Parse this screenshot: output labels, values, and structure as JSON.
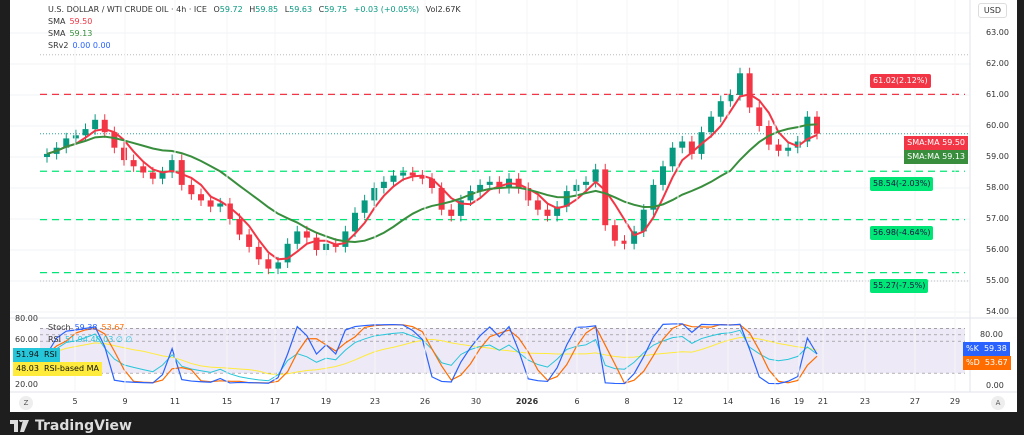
{
  "header": {
    "symbol": "U.S. DOLLAR / WTI CRUDE OIL · 4h · ICE",
    "open_label": "O",
    "open": "59.72",
    "high_label": "H",
    "high": "59.85",
    "low_label": "L",
    "low": "59.63",
    "close_label": "C",
    "close": "59.75",
    "change": "+0.03 (+0.05%)",
    "vol_label": "Vol",
    "vol": "2.67K"
  },
  "indicators": [
    {
      "name": "SMA",
      "value": "59.50",
      "color": "#f23645"
    },
    {
      "name": "SMA",
      "value": "59.13",
      "color": "#388e3c"
    },
    {
      "name": "SRv2",
      "value": "0.00  0.00",
      "color": "#2962ff"
    }
  ],
  "currency": "USD",
  "price_axis": [
    "63.00",
    "62.00",
    "61.00",
    "60.00",
    "59.00",
    "58.00",
    "57.00",
    "56.00",
    "55.00",
    "54.00"
  ],
  "levels": [
    {
      "price": 61.02,
      "label": "61.02(2.12%)",
      "color": "#f23645"
    },
    {
      "price": 58.54,
      "label": "58.54(-2.03%)",
      "color": "#00e676"
    },
    {
      "price": 56.98,
      "label": "56.98(-4.64%)",
      "color": "#00e676"
    },
    {
      "price": 55.27,
      "label": "55.27(-7.5%)",
      "color": "#00e676"
    }
  ],
  "sma_tags": [
    {
      "label": "SMA:MA",
      "value": "59.50",
      "color": "#f23645"
    },
    {
      "label": "SMA:MA",
      "value": "59.13",
      "color": "#388e3c"
    }
  ],
  "closes": [
    59.1,
    59.3,
    59.6,
    59.7,
    59.9,
    60.2,
    59.8,
    59.3,
    58.9,
    58.7,
    58.5,
    58.3,
    58.5,
    58.9,
    58.1,
    57.8,
    57.6,
    57.4,
    57.5,
    57.0,
    56.5,
    56.1,
    55.7,
    55.4,
    55.6,
    56.2,
    56.6,
    56.4,
    56.0,
    56.2,
    56.1,
    56.6,
    57.2,
    57.6,
    58.0,
    58.2,
    58.4,
    58.5,
    58.4,
    58.3,
    58.0,
    57.3,
    57.1,
    57.6,
    57.9,
    58.1,
    58.2,
    58.0,
    58.3,
    58.0,
    57.6,
    57.3,
    57.1,
    57.4,
    57.9,
    58.1,
    58.2,
    58.6,
    56.8,
    56.3,
    56.2,
    56.6,
    57.3,
    58.1,
    58.7,
    59.3,
    59.5,
    59.1,
    59.8,
    60.3,
    60.8,
    61.0,
    61.7,
    60.6,
    60.0,
    59.4,
    59.2,
    59.3,
    59.5,
    60.3,
    59.75
  ],
  "colors": {
    "up": "#089981",
    "down": "#f23645",
    "sma_fast": "#f23645",
    "sma_slow": "#388e3c",
    "stoch_k": "#2962ff",
    "stoch_d": "#ff6d00",
    "rsi": "#26c6da",
    "rsi_ma": "#ffeb3b"
  },
  "oscillator": {
    "stoch_label": "Stoch",
    "stoch_k": "59.38",
    "stoch_d": "53.67",
    "rsi_label": "RSI",
    "rsi_values": "51.94  48.03  ∅  ∅",
    "rsi_tag_value": "51.94",
    "rsi_tag_label": "RSI",
    "rsi_ma_value": "48.03",
    "rsi_ma_label": "RSI-based MA",
    "left_axis": [
      "80.00",
      "60.00",
      "20.00"
    ],
    "right_axis": [
      "80.00",
      "0.00"
    ],
    "k_tag": "%K",
    "d_tag": "%D"
  },
  "time_axis": [
    "5",
    "9",
    "11",
    "15",
    "17",
    "19",
    "23",
    "26",
    "30",
    "2026",
    "6",
    "8",
    "12",
    "14",
    "16",
    "19",
    "21",
    "23",
    "27",
    "29"
  ],
  "z_button": "Z",
  "a_button": "A",
  "brand": "TradingView"
}
